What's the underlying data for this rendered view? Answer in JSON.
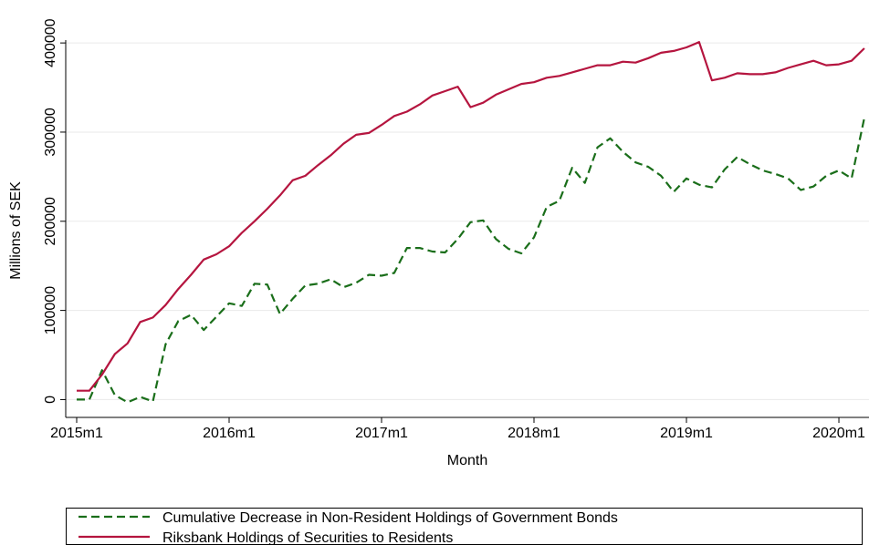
{
  "chart_data": {
    "type": "line",
    "x_label": "Month",
    "y_label": "Millions of SEK",
    "categories": [
      "2015m1",
      null,
      null,
      null,
      null,
      null,
      null,
      null,
      null,
      null,
      null,
      null,
      "2016m1",
      null,
      null,
      null,
      null,
      null,
      null,
      null,
      null,
      null,
      null,
      null,
      "2017m1",
      null,
      null,
      null,
      null,
      null,
      null,
      null,
      null,
      null,
      null,
      null,
      "2018m1",
      null,
      null,
      null,
      null,
      null,
      null,
      null,
      null,
      null,
      null,
      null,
      "2019m1",
      null,
      null,
      null,
      null,
      null,
      null,
      null,
      null,
      null,
      null,
      null,
      "2020m1",
      null,
      null
    ],
    "series": [
      {
        "name": "Cumulative Decrease in Non-Resident Holdings of Government Bonds",
        "color": "#1a6e1a",
        "dash": true,
        "values": [
          0,
          0,
          33000,
          5000,
          -3000,
          3000,
          -2000,
          62000,
          88000,
          95000,
          78000,
          93000,
          108000,
          105000,
          130000,
          129000,
          96000,
          113000,
          128000,
          130000,
          135000,
          126000,
          131000,
          140000,
          139000,
          142000,
          170000,
          170000,
          166000,
          165000,
          180000,
          199000,
          201000,
          180000,
          169000,
          164000,
          182000,
          216000,
          223000,
          260000,
          243000,
          283000,
          293000,
          278000,
          266000,
          261000,
          251000,
          233000,
          248000,
          241000,
          238000,
          258000,
          272000,
          264000,
          257000,
          253000,
          248000,
          235000,
          239000,
          251000,
          257000,
          248000,
          316000
        ]
      },
      {
        "name": "Riksbank Holdings of Securities to Residents",
        "color": "#b5153f",
        "dash": false,
        "values": [
          10000,
          10000,
          28000,
          51000,
          63000,
          87000,
          92000,
          106000,
          124000,
          140000,
          157000,
          163000,
          172000,
          187000,
          200000,
          214000,
          229000,
          246000,
          251000,
          263000,
          274000,
          287000,
          297000,
          299000,
          308000,
          318000,
          323000,
          331000,
          341000,
          346000,
          351000,
          328000,
          333000,
          342000,
          348000,
          354000,
          356000,
          361000,
          363000,
          367000,
          371000,
          375000,
          375000,
          379000,
          378000,
          383000,
          389000,
          391000,
          395000,
          401000,
          358000,
          361000,
          366000,
          365000,
          365000,
          367000,
          372000,
          376000,
          380000,
          375000,
          376000,
          380000,
          394000
        ]
      }
    ],
    "ylim": [
      -20000,
      440000
    ],
    "yticks": [
      0,
      100000,
      200000,
      300000,
      400000
    ],
    "grid": true,
    "legend": "bottom"
  }
}
